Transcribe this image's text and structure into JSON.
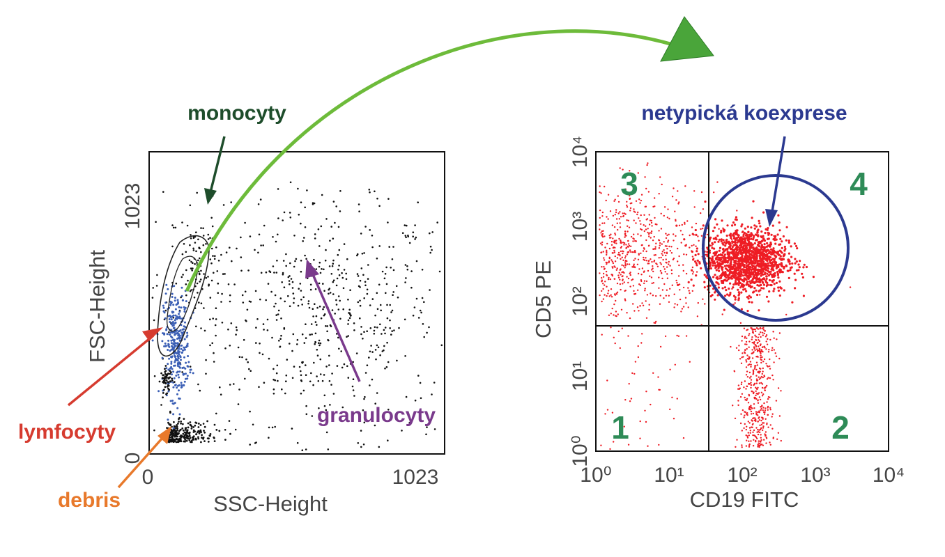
{
  "chart_data": [
    {
      "type": "scatter",
      "xlabel": "SSC-Height",
      "ylabel": "FSC-Height",
      "xlim": [
        0,
        1023
      ],
      "ylim": [
        0,
        1023
      ],
      "x_ticks": [
        "0",
        "1023"
      ],
      "y_ticks": [
        "0",
        "1023"
      ],
      "populations": [
        {
          "name": "monocyty",
          "color": "#1e4d2b",
          "center": [
            95,
            650
          ]
        },
        {
          "name": "lymfocyty",
          "color": "#d63b2f",
          "center": [
            90,
            360
          ],
          "gate_color": "#3b5fb5"
        },
        {
          "name": "debris",
          "color": "#e8792b",
          "center": [
            100,
            50
          ]
        },
        {
          "name": "granulocyty",
          "color": "#7a3a8c",
          "center": [
            610,
            470
          ]
        }
      ]
    },
    {
      "type": "scatter",
      "xlabel": "CD19 FITC",
      "ylabel": "CD5 PE",
      "scale": "log",
      "xlim": [
        1,
        10000
      ],
      "ylim": [
        1,
        10000
      ],
      "x_ticks": [
        "10⁰",
        "10¹",
        "10²",
        "10³",
        "10⁴"
      ],
      "y_ticks": [
        "10⁰",
        "10¹",
        "10²",
        "10³",
        "10⁴"
      ],
      "quadrant_threshold": {
        "x": 25,
        "y": 45
      },
      "quadrants": [
        "1",
        "2",
        "3",
        "4"
      ],
      "annotation": {
        "text": "netypická koexprese",
        "color": "#2b3990",
        "center": [
          130,
          250
        ]
      },
      "point_color": "#ee1c24",
      "quadrant_label_color": "#2e8b57"
    }
  ],
  "arrow_color": "#6dbb3a"
}
